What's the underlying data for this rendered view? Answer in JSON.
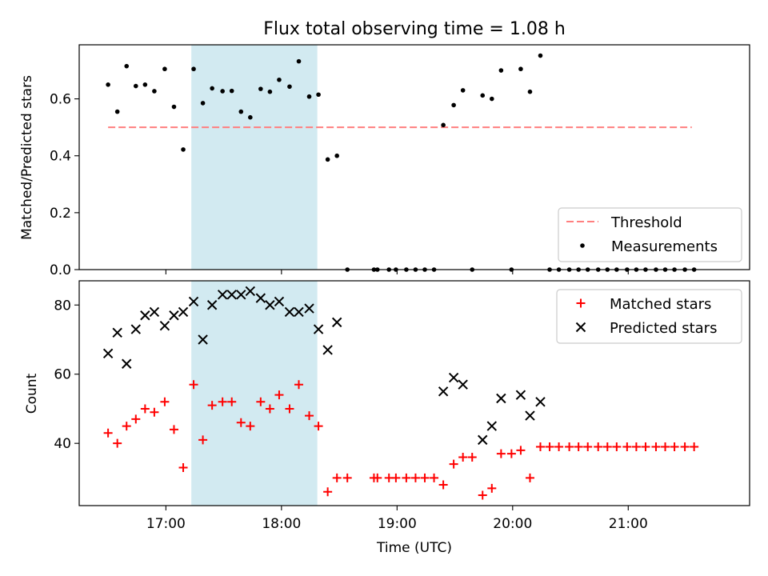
{
  "title": "Flux total observing time = 1.08 h",
  "colors": {
    "threshold": "#ff7f7f",
    "measurements": "#000000",
    "matched": "#ff0000",
    "predicted": "#000000",
    "span": "#add8e6"
  },
  "chart_data": [
    {
      "type": "scatter",
      "panel": "top",
      "ylabel": "Matched/Predicted stars",
      "xlim": [
        16.25,
        22.05
      ],
      "ylim": [
        0.0,
        0.79
      ],
      "yticks": [
        0.0,
        0.2,
        0.4,
        0.6
      ],
      "ytick_labels": [
        "0.0",
        "0.2",
        "0.4",
        "0.6"
      ],
      "shaded_span": [
        17.22,
        18.31
      ],
      "legend_position": "lower right",
      "threshold": {
        "name": "Threshold",
        "value": 0.5,
        "x": [
          16.5,
          21.55
        ]
      },
      "series": [
        {
          "name": "Measurements",
          "marker": "dot",
          "points": [
            [
              16.5,
              0.65
            ],
            [
              16.58,
              0.555
            ],
            [
              16.66,
              0.715
            ],
            [
              16.74,
              0.645
            ],
            [
              16.82,
              0.65
            ],
            [
              16.9,
              0.627
            ],
            [
              16.99,
              0.705
            ],
            [
              17.07,
              0.572
            ],
            [
              17.15,
              0.422
            ],
            [
              17.24,
              0.705
            ],
            [
              17.32,
              0.585
            ],
            [
              17.4,
              0.637
            ],
            [
              17.49,
              0.627
            ],
            [
              17.57,
              0.628
            ],
            [
              17.65,
              0.555
            ],
            [
              17.73,
              0.535
            ],
            [
              17.82,
              0.635
            ],
            [
              17.9,
              0.625
            ],
            [
              17.98,
              0.667
            ],
            [
              18.07,
              0.643
            ],
            [
              18.15,
              0.732
            ],
            [
              18.24,
              0.608
            ],
            [
              18.32,
              0.615
            ],
            [
              18.4,
              0.387
            ],
            [
              18.48,
              0.4
            ],
            [
              18.57,
              0.0
            ],
            [
              18.8,
              0.0
            ],
            [
              18.83,
              0.0
            ],
            [
              18.93,
              0.0
            ],
            [
              18.99,
              0.0
            ],
            [
              19.08,
              0.0
            ],
            [
              19.16,
              0.0
            ],
            [
              19.24,
              0.0
            ],
            [
              19.32,
              0.0
            ],
            [
              19.4,
              0.508
            ],
            [
              19.49,
              0.578
            ],
            [
              19.57,
              0.63
            ],
            [
              19.65,
              0.0
            ],
            [
              19.74,
              0.612
            ],
            [
              19.82,
              0.6
            ],
            [
              19.9,
              0.7
            ],
            [
              19.99,
              0.0
            ],
            [
              20.07,
              0.705
            ],
            [
              20.15,
              0.625
            ],
            [
              20.24,
              0.752
            ],
            [
              20.32,
              0.0
            ],
            [
              20.4,
              0.0
            ],
            [
              20.49,
              0.0
            ],
            [
              20.57,
              0.0
            ],
            [
              20.65,
              0.0
            ],
            [
              20.74,
              0.0
            ],
            [
              20.82,
              0.0
            ],
            [
              20.9,
              0.0
            ],
            [
              20.99,
              0.0
            ],
            [
              21.07,
              0.0
            ],
            [
              21.15,
              0.0
            ],
            [
              21.24,
              0.0
            ],
            [
              21.32,
              0.0
            ],
            [
              21.4,
              0.0
            ],
            [
              21.49,
              0.0
            ],
            [
              21.57,
              0.0
            ]
          ]
        }
      ]
    },
    {
      "type": "scatter",
      "panel": "bottom",
      "xlabel": "Time (UTC)",
      "ylabel": "Count",
      "xlim": [
        16.25,
        22.05
      ],
      "ylim": [
        22,
        87
      ],
      "xticks": [
        17,
        18,
        19,
        20,
        21
      ],
      "xtick_labels": [
        "17:00",
        "18:00",
        "19:00",
        "20:00",
        "21:00"
      ],
      "yticks": [
        40,
        60,
        80
      ],
      "ytick_labels": [
        "40",
        "60",
        "80"
      ],
      "shaded_span": [
        17.22,
        18.31
      ],
      "legend_position": "upper right",
      "series": [
        {
          "name": "Matched stars",
          "marker": "plus",
          "points": [
            [
              16.5,
              43
            ],
            [
              16.58,
              40
            ],
            [
              16.66,
              45
            ],
            [
              16.74,
              47
            ],
            [
              16.82,
              50
            ],
            [
              16.9,
              49
            ],
            [
              16.99,
              52
            ],
            [
              17.07,
              44
            ],
            [
              17.15,
              33
            ],
            [
              17.24,
              57
            ],
            [
              17.32,
              41
            ],
            [
              17.4,
              51
            ],
            [
              17.49,
              52
            ],
            [
              17.57,
              52
            ],
            [
              17.65,
              46
            ],
            [
              17.73,
              45
            ],
            [
              17.82,
              52
            ],
            [
              17.9,
              50
            ],
            [
              17.98,
              54
            ],
            [
              18.07,
              50
            ],
            [
              18.15,
              57
            ],
            [
              18.24,
              48
            ],
            [
              18.32,
              45
            ],
            [
              18.4,
              26
            ],
            [
              18.48,
              30
            ],
            [
              18.57,
              30
            ],
            [
              18.8,
              30
            ],
            [
              18.83,
              30
            ],
            [
              18.93,
              30
            ],
            [
              18.99,
              30
            ],
            [
              19.08,
              30
            ],
            [
              19.16,
              30
            ],
            [
              19.24,
              30
            ],
            [
              19.32,
              30
            ],
            [
              19.4,
              28
            ],
            [
              19.49,
              34
            ],
            [
              19.57,
              36
            ],
            [
              19.65,
              36
            ],
            [
              19.74,
              25
            ],
            [
              19.82,
              27
            ],
            [
              19.9,
              37
            ],
            [
              19.99,
              37
            ],
            [
              20.07,
              38
            ],
            [
              20.15,
              30
            ],
            [
              20.24,
              39
            ],
            [
              20.32,
              39
            ],
            [
              20.4,
              39
            ],
            [
              20.49,
              39
            ],
            [
              20.57,
              39
            ],
            [
              20.65,
              39
            ],
            [
              20.74,
              39
            ],
            [
              20.82,
              39
            ],
            [
              20.9,
              39
            ],
            [
              20.99,
              39
            ],
            [
              21.07,
              39
            ],
            [
              21.15,
              39
            ],
            [
              21.24,
              39
            ],
            [
              21.32,
              39
            ],
            [
              21.4,
              39
            ],
            [
              21.49,
              39
            ],
            [
              21.57,
              39
            ]
          ]
        },
        {
          "name": "Predicted stars",
          "marker": "x",
          "points": [
            [
              16.5,
              66
            ],
            [
              16.58,
              72
            ],
            [
              16.66,
              63
            ],
            [
              16.74,
              73
            ],
            [
              16.82,
              77
            ],
            [
              16.9,
              78
            ],
            [
              16.99,
              74
            ],
            [
              17.07,
              77
            ],
            [
              17.15,
              78
            ],
            [
              17.24,
              81
            ],
            [
              17.32,
              70
            ],
            [
              17.4,
              80
            ],
            [
              17.49,
              83
            ],
            [
              17.57,
              83
            ],
            [
              17.65,
              83
            ],
            [
              17.73,
              84
            ],
            [
              17.82,
              82
            ],
            [
              17.9,
              80
            ],
            [
              17.98,
              81
            ],
            [
              18.07,
              78
            ],
            [
              18.15,
              78
            ],
            [
              18.24,
              79
            ],
            [
              18.32,
              73
            ],
            [
              18.4,
              67
            ],
            [
              18.48,
              75
            ],
            [
              19.4,
              55
            ],
            [
              19.49,
              59
            ],
            [
              19.57,
              57
            ],
            [
              19.74,
              41
            ],
            [
              19.82,
              45
            ],
            [
              19.9,
              53
            ],
            [
              20.07,
              54
            ],
            [
              20.15,
              48
            ],
            [
              20.24,
              52
            ]
          ]
        }
      ]
    }
  ]
}
